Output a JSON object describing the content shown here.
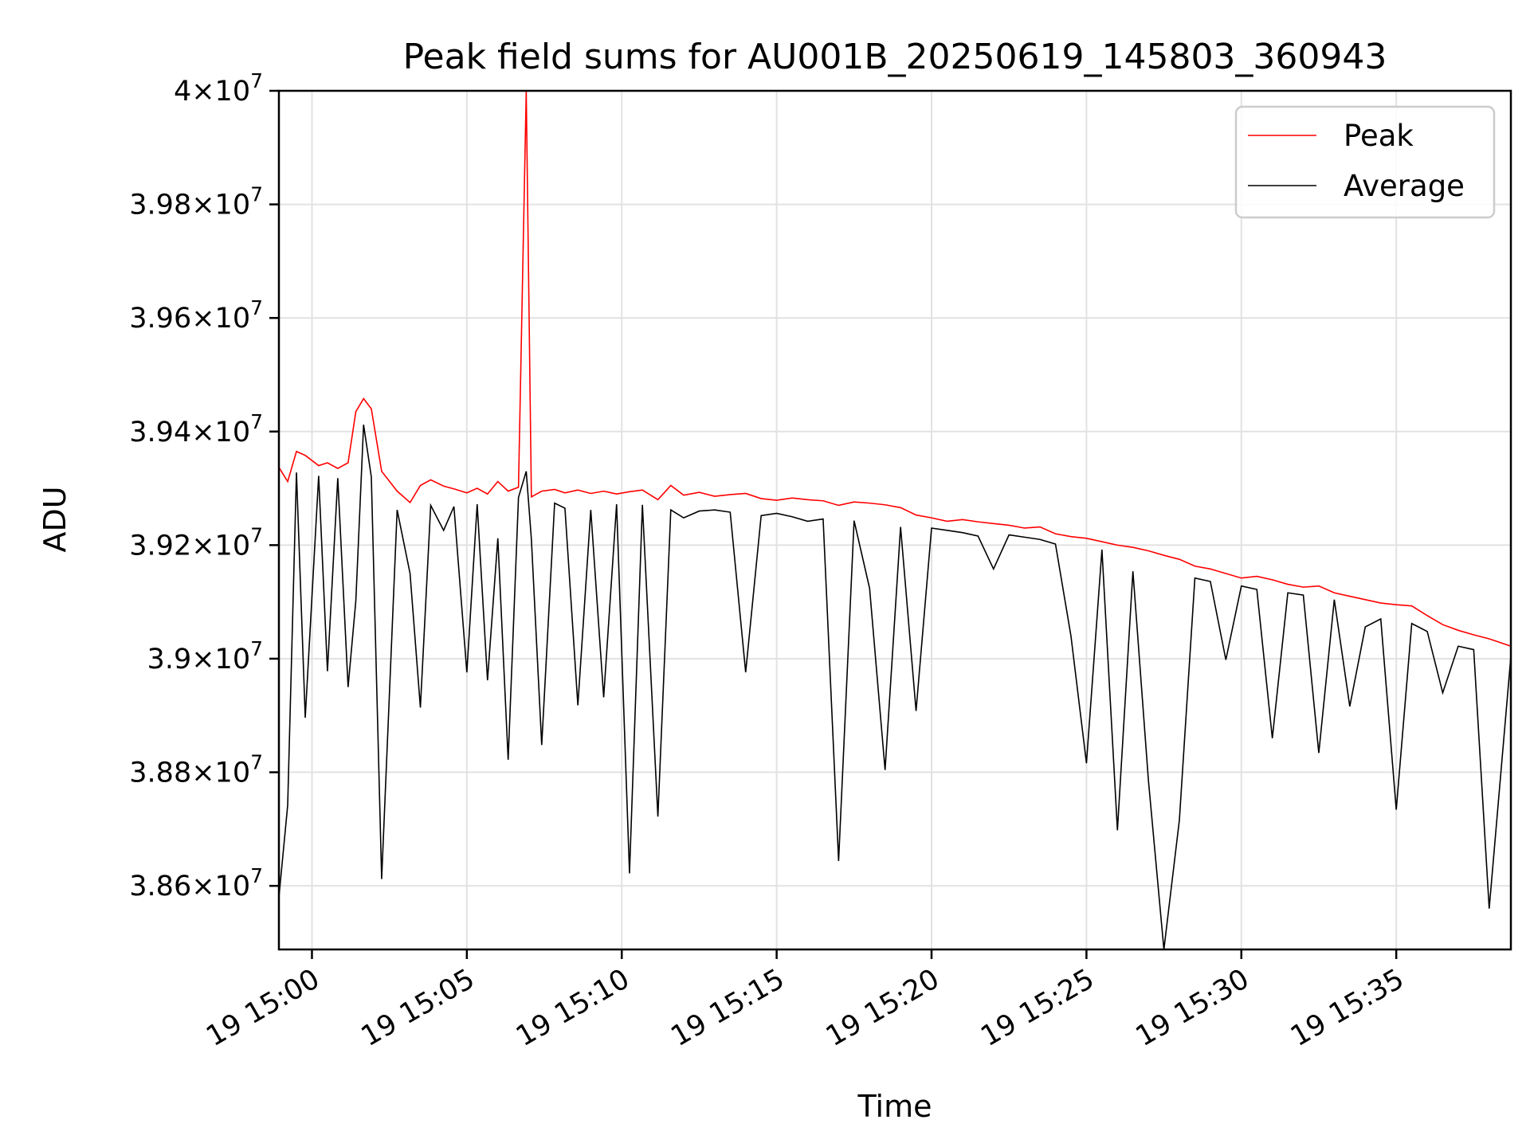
{
  "chart_data": {
    "type": "line",
    "title": "Peak field sums for AU001B_20250619_145803_360943",
    "xlabel": "Time",
    "ylabel": "ADU",
    "xlim": [
      "2025-06-19 14:58:56",
      "2025-06-19 15:38:42"
    ],
    "ylim": [
      38488000,
      40000000
    ],
    "grid": true,
    "legend": "top-right",
    "x_ticks": [
      {
        "value": "2025-06-19 15:00",
        "label": "19 15:00"
      },
      {
        "value": "2025-06-19 15:05",
        "label": "19 15:05"
      },
      {
        "value": "2025-06-19 15:10",
        "label": "19 15:10"
      },
      {
        "value": "2025-06-19 15:15",
        "label": "19 15:15"
      },
      {
        "value": "2025-06-19 15:20",
        "label": "19 15:20"
      },
      {
        "value": "2025-06-19 15:25",
        "label": "19 15:25"
      },
      {
        "value": "2025-06-19 15:30",
        "label": "19 15:30"
      },
      {
        "value": "2025-06-19 15:35",
        "label": "19 15:35"
      }
    ],
    "y_ticks": [
      {
        "value": 38600000,
        "mantissa": "3.86",
        "exponent": "7"
      },
      {
        "value": 38800000,
        "mantissa": "3.88",
        "exponent": "7"
      },
      {
        "value": 39000000,
        "mantissa": "3.9",
        "exponent": "7"
      },
      {
        "value": 39200000,
        "mantissa": "3.92",
        "exponent": "7"
      },
      {
        "value": 39400000,
        "mantissa": "3.94",
        "exponent": "7"
      },
      {
        "value": 39600000,
        "mantissa": "3.96",
        "exponent": "7"
      },
      {
        "value": 39800000,
        "mantissa": "3.98",
        "exponent": "7"
      },
      {
        "value": 40000000,
        "mantissa": "4",
        "exponent": "7"
      }
    ],
    "x": [
      "2025-06-19 14:58:56",
      "2025-06-19 14:59:13",
      "2025-06-19 14:59:30",
      "2025-06-19 14:59:47",
      "2025-06-19 15:00:13",
      "2025-06-19 15:00:30",
      "2025-06-19 15:00:50",
      "2025-06-19 15:01:10",
      "2025-06-19 15:01:25",
      "2025-06-19 15:01:40",
      "2025-06-19 15:01:55",
      "2025-06-19 15:02:15",
      "2025-06-19 15:02:45",
      "2025-06-19 15:03:10",
      "2025-06-19 15:03:30",
      "2025-06-19 15:03:50",
      "2025-06-19 15:04:15",
      "2025-06-19 15:04:35",
      "2025-06-19 15:05:00",
      "2025-06-19 15:05:20",
      "2025-06-19 15:05:40",
      "2025-06-19 15:06:00",
      "2025-06-19 15:06:20",
      "2025-06-19 15:06:40",
      "2025-06-19 15:06:55",
      "2025-06-19 15:07:05",
      "2025-06-19 15:07:25",
      "2025-06-19 15:07:50",
      "2025-06-19 15:08:10",
      "2025-06-19 15:08:35",
      "2025-06-19 15:09:00",
      "2025-06-19 15:09:25",
      "2025-06-19 15:09:50",
      "2025-06-19 15:10:15",
      "2025-06-19 15:10:40",
      "2025-06-19 15:11:10",
      "2025-06-19 15:11:35",
      "2025-06-19 15:12:00",
      "2025-06-19 15:12:30",
      "2025-06-19 15:13:00",
      "2025-06-19 15:13:30",
      "2025-06-19 15:14:00",
      "2025-06-19 15:14:30",
      "2025-06-19 15:15:00",
      "2025-06-19 15:15:30",
      "2025-06-19 15:16:00",
      "2025-06-19 15:16:30",
      "2025-06-19 15:17:00",
      "2025-06-19 15:17:30",
      "2025-06-19 15:18:00",
      "2025-06-19 15:18:30",
      "2025-06-19 15:19:00",
      "2025-06-19 15:19:30",
      "2025-06-19 15:20:00",
      "2025-06-19 15:20:30",
      "2025-06-19 15:21:00",
      "2025-06-19 15:21:30",
      "2025-06-19 15:22:00",
      "2025-06-19 15:22:30",
      "2025-06-19 15:23:00",
      "2025-06-19 15:23:30",
      "2025-06-19 15:24:00",
      "2025-06-19 15:24:30",
      "2025-06-19 15:25:00",
      "2025-06-19 15:25:30",
      "2025-06-19 15:26:00",
      "2025-06-19 15:26:30",
      "2025-06-19 15:27:00",
      "2025-06-19 15:27:30",
      "2025-06-19 15:28:00",
      "2025-06-19 15:28:30",
      "2025-06-19 15:29:00",
      "2025-06-19 15:29:30",
      "2025-06-19 15:30:00",
      "2025-06-19 15:30:30",
      "2025-06-19 15:31:00",
      "2025-06-19 15:31:30",
      "2025-06-19 15:32:00",
      "2025-06-19 15:32:30",
      "2025-06-19 15:33:00",
      "2025-06-19 15:33:30",
      "2025-06-19 15:34:00",
      "2025-06-19 15:34:30",
      "2025-06-19 15:35:00",
      "2025-06-19 15:35:30",
      "2025-06-19 15:36:00",
      "2025-06-19 15:36:30",
      "2025-06-19 15:37:00",
      "2025-06-19 15:37:30",
      "2025-06-19 15:38:00",
      "2025-06-19 15:38:42"
    ],
    "series": [
      {
        "name": "Peak",
        "color": "#ff0000",
        "values": [
          39337000,
          39312000,
          39365000,
          39358000,
          39340000,
          39345000,
          39335000,
          39345000,
          39435000,
          39458000,
          39440000,
          39330000,
          39295000,
          39275000,
          39305000,
          39315000,
          39304000,
          39299000,
          39292000,
          39300000,
          39290000,
          39312000,
          39295000,
          39302000,
          40000000,
          39285000,
          39295000,
          39298000,
          39292000,
          39297000,
          39291000,
          39295000,
          39290000,
          39294000,
          39297000,
          39280000,
          39305000,
          39288000,
          39293000,
          39286000,
          39289000,
          39291000,
          39282000,
          39279000,
          39283000,
          39280000,
          39278000,
          39270000,
          39276000,
          39274000,
          39271000,
          39266000,
          39253000,
          39248000,
          39242000,
          39245000,
          39241000,
          39238000,
          39235000,
          39230000,
          39232000,
          39220000,
          39215000,
          39212000,
          39206000,
          39200000,
          39196000,
          39190000,
          39182000,
          39175000,
          39163000,
          39158000,
          39150000,
          39142000,
          39145000,
          39139000,
          39131000,
          39126000,
          39128000,
          39116000,
          39110000,
          39104000,
          39098000,
          39095000,
          39093000,
          39076000,
          39060000,
          39050000,
          39042000,
          39035000,
          39022000
        ]
      },
      {
        "name": "Average",
        "color": "#000000",
        "values": [
          38580000,
          38742000,
          39328000,
          38896000,
          39322000,
          38978000,
          39318000,
          38950000,
          39102000,
          39412000,
          39320000,
          38612000,
          39262000,
          39150000,
          38914000,
          39270000,
          39226000,
          39268000,
          38976000,
          39272000,
          38962000,
          39212000,
          38822000,
          39284000,
          39330000,
          39210000,
          38848000,
          39274000,
          39265000,
          38918000,
          39262000,
          38932000,
          39272000,
          38622000,
          39271000,
          38722000,
          39262000,
          39248000,
          39260000,
          39262000,
          39258000,
          38976000,
          39252000,
          39256000,
          39250000,
          39242000,
          39246000,
          38644000,
          39243000,
          39124000,
          38804000,
          39232000,
          38908000,
          39230000,
          39226000,
          39222000,
          39216000,
          39158000,
          39218000,
          39214000,
          39210000,
          39202000,
          39040000,
          38816000,
          39192000,
          38698000,
          39154000,
          38786000,
          38488000,
          38716000,
          39142000,
          39136000,
          38998000,
          39128000,
          39122000,
          38860000,
          39116000,
          39112000,
          38834000,
          39104000,
          38916000,
          39056000,
          39070000,
          38734000,
          39062000,
          39048000,
          38940000,
          39022000,
          39016000,
          38560000,
          39004000
        ]
      }
    ]
  }
}
